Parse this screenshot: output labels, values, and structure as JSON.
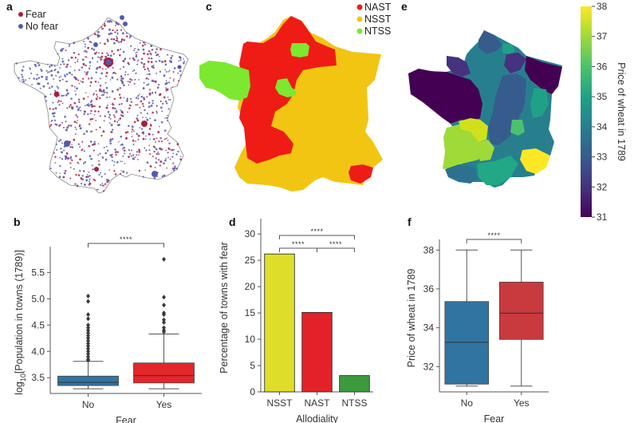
{
  "figure": {
    "panels": {
      "a": {
        "label": "a",
        "type": "map-scatter",
        "legend": [
          {
            "label": "Fear",
            "color": "#a8203a"
          },
          {
            "label": "No fear",
            "color": "#5558b0"
          }
        ]
      },
      "c": {
        "label": "c",
        "type": "map-categorical",
        "legend": [
          {
            "label": "NAST",
            "color": "#ee1c14"
          },
          {
            "label": "NSST",
            "color": "#f2c512"
          },
          {
            "label": "NTSS",
            "color": "#7ce830"
          }
        ]
      },
      "e": {
        "label": "e",
        "type": "map-choropleth",
        "colorbar": {
          "label": "Price of wheat in 1789",
          "min": 31,
          "max": 38,
          "ticks": [
            "31",
            "32",
            "33",
            "34",
            "35",
            "36",
            "37",
            "38"
          ],
          "colormap": "viridis"
        }
      }
    }
  },
  "chart_data": [
    {
      "id": "b",
      "panel_label": "b",
      "type": "box",
      "xlabel": "Fear",
      "ylabel": "log10[Population in towns (1789)]",
      "ylabel_parts": {
        "prefix": "log",
        "sub": "10",
        "rest": "[Population in towns (1789)]"
      },
      "categories": [
        "No",
        "Yes"
      ],
      "ylim": [
        3.2,
        5.9
      ],
      "yticks": [
        3.5,
        4.0,
        4.5,
        5.0,
        5.5
      ],
      "ytick_labels": [
        "3.5",
        "4.0",
        "4.5",
        "5.0",
        "5.5"
      ],
      "series": [
        {
          "name": "No",
          "color": "#3274a1",
          "whisker_low": 3.29,
          "q1": 3.35,
          "median": 3.41,
          "q3": 3.53,
          "whisker_high": 3.81,
          "outliers": [
            5.05,
            4.95,
            4.7,
            4.62,
            4.5,
            4.45,
            4.4,
            4.35,
            4.3,
            4.25,
            4.2,
            4.15,
            4.1,
            4.05,
            4.0,
            3.95,
            3.9,
            3.85,
            3.83
          ]
        },
        {
          "name": "Yes",
          "color": "#e2262a",
          "whisker_low": 3.29,
          "q1": 3.4,
          "median": 3.54,
          "q3": 3.78,
          "whisker_high": 4.33,
          "outliers": [
            5.75,
            5.03,
            4.88,
            4.73,
            4.7,
            4.6,
            4.55,
            4.45,
            4.4,
            4.37
          ]
        }
      ],
      "significance": [
        {
          "from": "No",
          "to": "Yes",
          "label": "****"
        }
      ]
    },
    {
      "id": "d",
      "panel_label": "d",
      "type": "bar",
      "xlabel": "Allodiality",
      "ylabel": "Percentage of towns with fear",
      "categories": [
        "NSST",
        "NAST",
        "NTSS"
      ],
      "values": [
        26.2,
        15.1,
        3.1
      ],
      "colors": [
        "#dede2a",
        "#e22228",
        "#3c9a3c"
      ],
      "ylim": [
        0,
        32
      ],
      "yticks": [
        0,
        5,
        10,
        15,
        20,
        25,
        30
      ],
      "ytick_labels": [
        "0",
        "5",
        "10",
        "15",
        "20",
        "25",
        "30"
      ],
      "significance": [
        {
          "from": "NSST",
          "to": "NTSS",
          "label": "****",
          "level": 2
        },
        {
          "from": "NSST",
          "to": "NAST",
          "label": "****",
          "level": 1
        },
        {
          "from": "NAST",
          "to": "NTSS",
          "label": "****",
          "level": 1
        }
      ]
    },
    {
      "id": "f",
      "panel_label": "f",
      "type": "box",
      "xlabel": "Fear",
      "ylabel": "Price of wheat in 1789",
      "categories": [
        "No",
        "Yes"
      ],
      "ylim": [
        30.7,
        38.3
      ],
      "yticks": [
        32,
        34,
        36,
        38
      ],
      "ytick_labels": [
        "32",
        "34",
        "36",
        "38"
      ],
      "series": [
        {
          "name": "No",
          "color": "#3274a1",
          "whisker_low": 31.0,
          "q1": 31.1,
          "median": 33.25,
          "q3": 35.35,
          "whisker_high": 38.0,
          "outliers": []
        },
        {
          "name": "Yes",
          "color": "#c83a3e",
          "whisker_low": 31.0,
          "q1": 33.4,
          "median": 34.75,
          "q3": 36.35,
          "whisker_high": 38.0,
          "outliers": []
        }
      ],
      "significance": [
        {
          "from": "No",
          "to": "Yes",
          "label": "****"
        }
      ]
    }
  ]
}
